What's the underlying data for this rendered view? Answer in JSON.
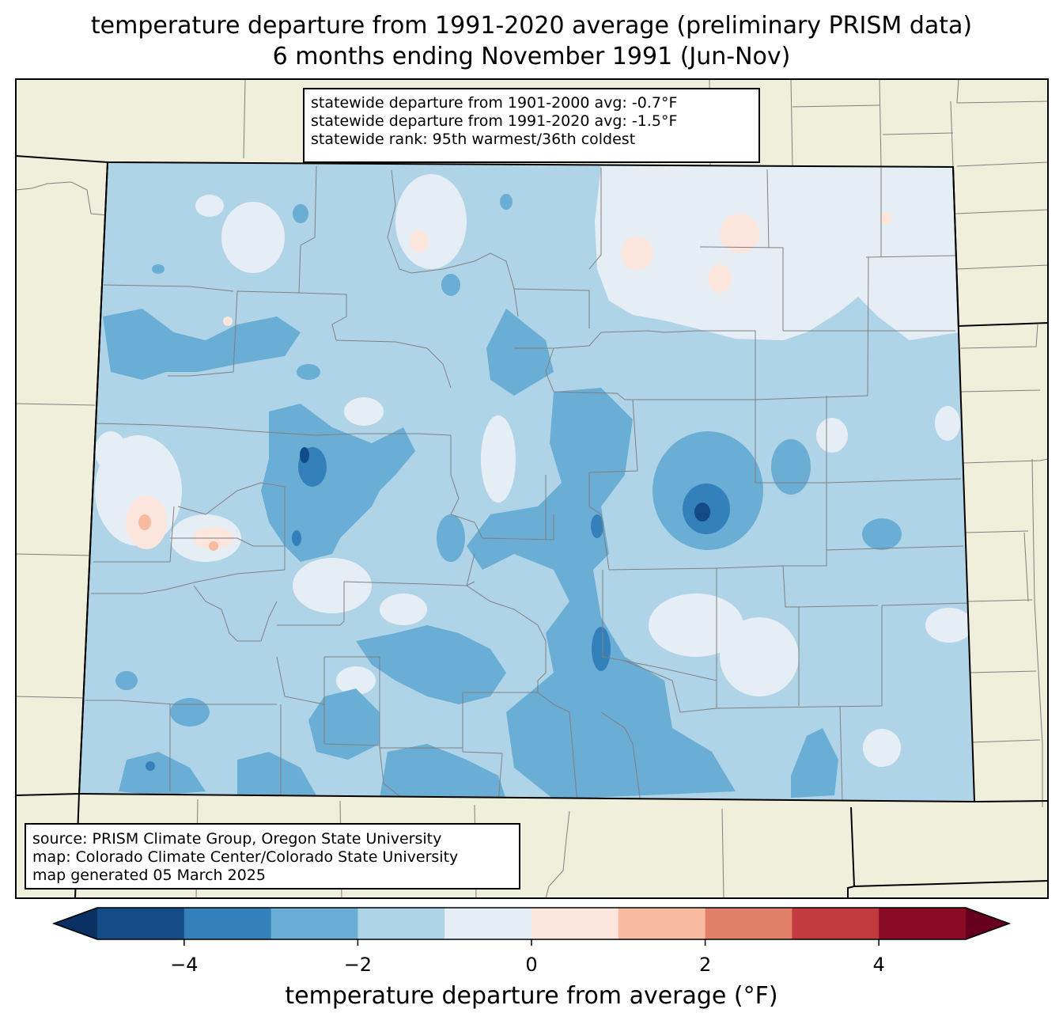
{
  "title": {
    "line1": "temperature departure from 1991-2020 average (preliminary PRISM data)",
    "line2": "6 months ending November 1991 (Jun-Nov)"
  },
  "stats": {
    "line1": "statewide departure from 1901-2000 avg: -0.7°F",
    "line2": "statewide departure from 1991-2020 avg: -1.5°F",
    "line3": "statewide rank: 95th warmest/36th coldest"
  },
  "credits": {
    "line1": "source: PRISM Climate Group, Oregon State University",
    "line2": "map: Colorado Climate Center/Colorado State University",
    "line3": "map generated 05 March 2025"
  },
  "colorbar": {
    "label": "temperature departure from average (°F)",
    "min": -5,
    "max": 5,
    "bins": [
      {
        "from": -5,
        "to": -4,
        "color": "#134b87"
      },
      {
        "from": -4,
        "to": -3,
        "color": "#3480bb"
      },
      {
        "from": -3,
        "to": -2,
        "color": "#6aadd5"
      },
      {
        "from": -2,
        "to": -1,
        "color": "#b0d4e7"
      },
      {
        "from": -1,
        "to": 0,
        "color": "#e6eef5"
      },
      {
        "from": 0,
        "to": 1,
        "color": "#fbe5dc"
      },
      {
        "from": 1,
        "to": 2,
        "color": "#f8bba0"
      },
      {
        "from": 2,
        "to": 3,
        "color": "#e27f69"
      },
      {
        "from": 3,
        "to": 4,
        "color": "#c13a3d"
      },
      {
        "from": 4,
        "to": 5,
        "color": "#8a0b25"
      }
    ],
    "under_color": "#0a2f62",
    "over_color": "#67001f",
    "ticks": [
      {
        "value": -4,
        "label": "−4"
      },
      {
        "value": -2,
        "label": "−2"
      },
      {
        "value": 0,
        "label": "0"
      },
      {
        "value": 2,
        "label": "2"
      },
      {
        "value": 4,
        "label": "4"
      }
    ]
  },
  "colors": {
    "land": "#f0efdc",
    "state_border": "#000000",
    "county_border": "#808080"
  }
}
